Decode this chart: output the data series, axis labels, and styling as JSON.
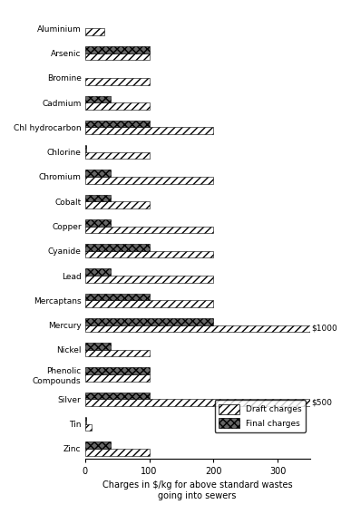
{
  "categories": [
    "Aluminium",
    "Arsenic",
    "Bromine",
    "Cadmium",
    "Chl hydrocarbon",
    "Chlorine",
    "Chromium",
    "Cobalt",
    "Copper",
    "Cyanide",
    "Lead",
    "Mercaptans",
    "Mercury",
    "Nickel",
    "Phenolic\nCompounds",
    "Silver",
    "Tin",
    "Zinc"
  ],
  "draft_charges": [
    30,
    100,
    100,
    100,
    200,
    100,
    200,
    100,
    200,
    200,
    200,
    200,
    1000,
    100,
    100,
    500,
    10,
    100
  ],
  "final_charges": [
    0,
    100,
    0,
    40,
    100,
    2,
    40,
    40,
    40,
    100,
    40,
    100,
    200,
    40,
    100,
    100,
    2,
    40
  ],
  "xlim": [
    0,
    350
  ],
  "xticks": [
    0,
    100,
    200,
    300
  ],
  "xlabel": "Charges in $/kg for above standard wastes\ngoing into sewers",
  "annotation_mercury": "$1000",
  "annotation_silver": "$500",
  "bar_height": 0.28,
  "background_color": "#ffffff",
  "legend_draft": "Draft charges",
  "legend_final": "Final charges"
}
